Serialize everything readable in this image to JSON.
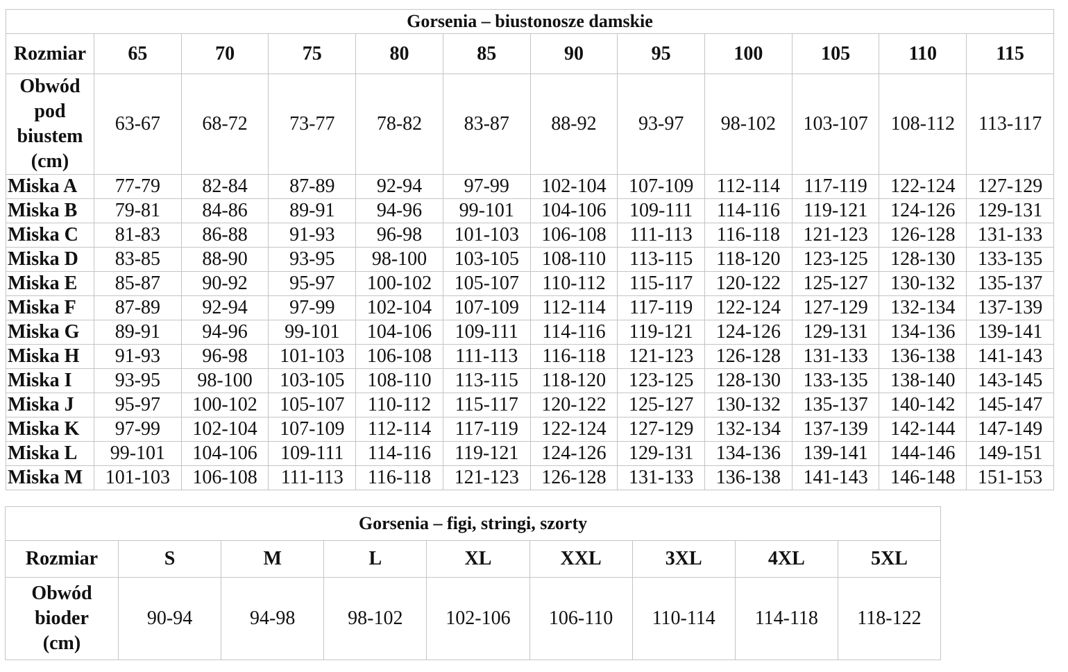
{
  "bras": {
    "title": "Gorsenia – biustonosze damskie",
    "size_label": "Rozmiar",
    "sizes": [
      "65",
      "70",
      "75",
      "80",
      "85",
      "90",
      "95",
      "100",
      "105",
      "110",
      "115"
    ],
    "underbust_label": [
      "Obwód",
      "pod",
      "biustem",
      "(cm)"
    ],
    "underbust": [
      "63-67",
      "68-72",
      "73-77",
      "78-82",
      "83-87",
      "88-92",
      "93-97",
      "98-102",
      "103-107",
      "108-112",
      "113-117"
    ],
    "cups": [
      {
        "label": "Miska A",
        "values": [
          "77-79",
          "82-84",
          "87-89",
          "92-94",
          "97-99",
          "102-104",
          "107-109",
          "112-114",
          "117-119",
          "122-124",
          "127-129"
        ]
      },
      {
        "label": "Miska B",
        "values": [
          "79-81",
          "84-86",
          "89-91",
          "94-96",
          "99-101",
          "104-106",
          "109-111",
          "114-116",
          "119-121",
          "124-126",
          "129-131"
        ]
      },
      {
        "label": "Miska C",
        "values": [
          "81-83",
          "86-88",
          "91-93",
          "96-98",
          "101-103",
          "106-108",
          "111-113",
          "116-118",
          "121-123",
          "126-128",
          "131-133"
        ]
      },
      {
        "label": "Miska D",
        "values": [
          "83-85",
          "88-90",
          "93-95",
          "98-100",
          "103-105",
          "108-110",
          "113-115",
          "118-120",
          "123-125",
          "128-130",
          "133-135"
        ]
      },
      {
        "label": "Miska E",
        "values": [
          "85-87",
          "90-92",
          "95-97",
          "100-102",
          "105-107",
          "110-112",
          "115-117",
          "120-122",
          "125-127",
          "130-132",
          "135-137"
        ]
      },
      {
        "label": "Miska F",
        "values": [
          "87-89",
          "92-94",
          "97-99",
          "102-104",
          "107-109",
          "112-114",
          "117-119",
          "122-124",
          "127-129",
          "132-134",
          "137-139"
        ]
      },
      {
        "label": "Miska G",
        "values": [
          "89-91",
          "94-96",
          "99-101",
          "104-106",
          "109-111",
          "114-116",
          "119-121",
          "124-126",
          "129-131",
          "134-136",
          "139-141"
        ]
      },
      {
        "label": "Miska H",
        "values": [
          "91-93",
          "96-98",
          "101-103",
          "106-108",
          "111-113",
          "116-118",
          "121-123",
          "126-128",
          "131-133",
          "136-138",
          "141-143"
        ]
      },
      {
        "label": "Miska I",
        "values": [
          "93-95",
          "98-100",
          "103-105",
          "108-110",
          "113-115",
          "118-120",
          "123-125",
          "128-130",
          "133-135",
          "138-140",
          "143-145"
        ]
      },
      {
        "label": "Miska J",
        "values": [
          "95-97",
          "100-102",
          "105-107",
          "110-112",
          "115-117",
          "120-122",
          "125-127",
          "130-132",
          "135-137",
          "140-142",
          "145-147"
        ]
      },
      {
        "label": "Miska K",
        "values": [
          "97-99",
          "102-104",
          "107-109",
          "112-114",
          "117-119",
          "122-124",
          "127-129",
          "132-134",
          "137-139",
          "142-144",
          "147-149"
        ]
      },
      {
        "label": "Miska L",
        "values": [
          "99-101",
          "104-106",
          "109-111",
          "114-116",
          "119-121",
          "124-126",
          "129-131",
          "134-136",
          "139-141",
          "144-146",
          "149-151"
        ]
      },
      {
        "label": "Miska M",
        "values": [
          "101-103",
          "106-108",
          "111-113",
          "116-118",
          "121-123",
          "126-128",
          "131-133",
          "136-138",
          "141-143",
          "146-148",
          "151-153"
        ]
      }
    ]
  },
  "briefs": {
    "title": "Gorsenia – figi, stringi, szorty",
    "size_label": "Rozmiar",
    "sizes": [
      "S",
      "M",
      "L",
      "XL",
      "XXL",
      "3XL",
      "4XL",
      "5XL"
    ],
    "hip_label": [
      "Obwód",
      "bioder",
      "(cm)"
    ],
    "hips": [
      "90-94",
      "94-98",
      "98-102",
      "102-106",
      "106-110",
      "110-114",
      "114-118",
      "118-122"
    ]
  }
}
